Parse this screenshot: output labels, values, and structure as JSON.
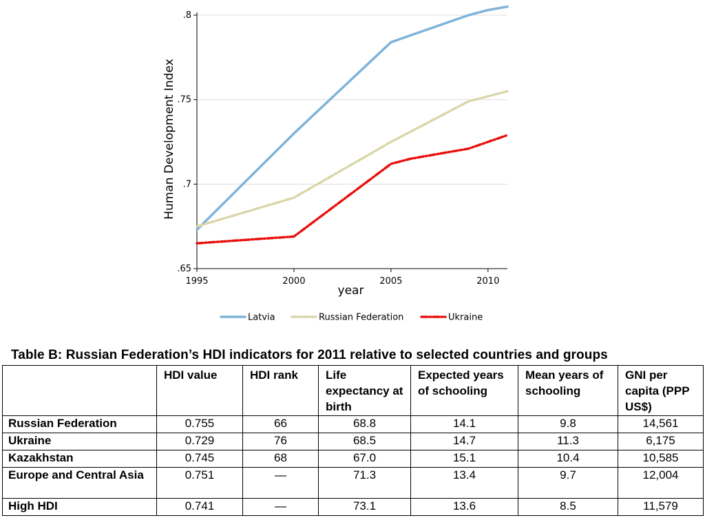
{
  "chart_data": {
    "type": "line",
    "xlabel": "year",
    "ylabel": "Human Development Index",
    "xlim": [
      1995,
      2011
    ],
    "ylim": [
      0.65,
      0.8
    ],
    "xticks": [
      1995,
      2000,
      2005,
      2010
    ],
    "xtick_labels": [
      "1995",
      "2000",
      "2005",
      "2010"
    ],
    "yticks": [
      0.65,
      0.7,
      0.75,
      0.8
    ],
    "ytick_labels": [
      ".65",
      ".7",
      ".75",
      ".8"
    ],
    "grid": true,
    "legend_position": "bottom",
    "x": [
      1995,
      2000,
      2005,
      2006,
      2007,
      2008,
      2009,
      2010,
      2011
    ],
    "series": [
      {
        "name": "Latvia",
        "style": "solid",
        "color": "#7fb3d9",
        "values": [
          0.673,
          0.73,
          0.784,
          0.788,
          0.792,
          0.796,
          0.8,
          0.803,
          0.805
        ]
      },
      {
        "name": "Russian Federation",
        "style": "dashdot",
        "color": "#d9d6a8",
        "values": [
          0.675,
          0.692,
          0.725,
          0.731,
          0.737,
          0.743,
          0.749,
          0.752,
          0.755
        ]
      },
      {
        "name": "Ukraine",
        "style": "dashdot",
        "color": "#e8100d",
        "values": [
          0.665,
          0.669,
          0.712,
          0.715,
          0.717,
          0.719,
          0.721,
          0.725,
          0.729
        ]
      }
    ]
  },
  "table": {
    "caption": "Table B:  Russian Federation’s HDI indicators for 2011 relative to selected countries and groups",
    "headers": [
      "",
      "HDI value",
      "HDI rank",
      "Life expectancy at birth",
      "Expected years of schooling",
      "Mean years of schooling",
      "GNI per capita (PPP US$)"
    ],
    "rows": [
      [
        "Russian Federation",
        "0.755",
        "66",
        "68.8",
        "14.1",
        "9.8",
        "14,561"
      ],
      [
        "Ukraine",
        "0.729",
        "76",
        "68.5",
        "14.7",
        "11.3",
        "6,175"
      ],
      [
        "Kazakhstan",
        "0.745",
        "68",
        "67.0",
        "15.1",
        "10.4",
        "10,585"
      ],
      [
        "Europe and Central Asia",
        "0.751",
        "—",
        "71.3",
        "13.4",
        "9.7",
        "12,004"
      ],
      [
        "High HDI",
        "0.741",
        "—",
        "73.1",
        "13.6",
        "8.5",
        "11,579"
      ]
    ]
  }
}
